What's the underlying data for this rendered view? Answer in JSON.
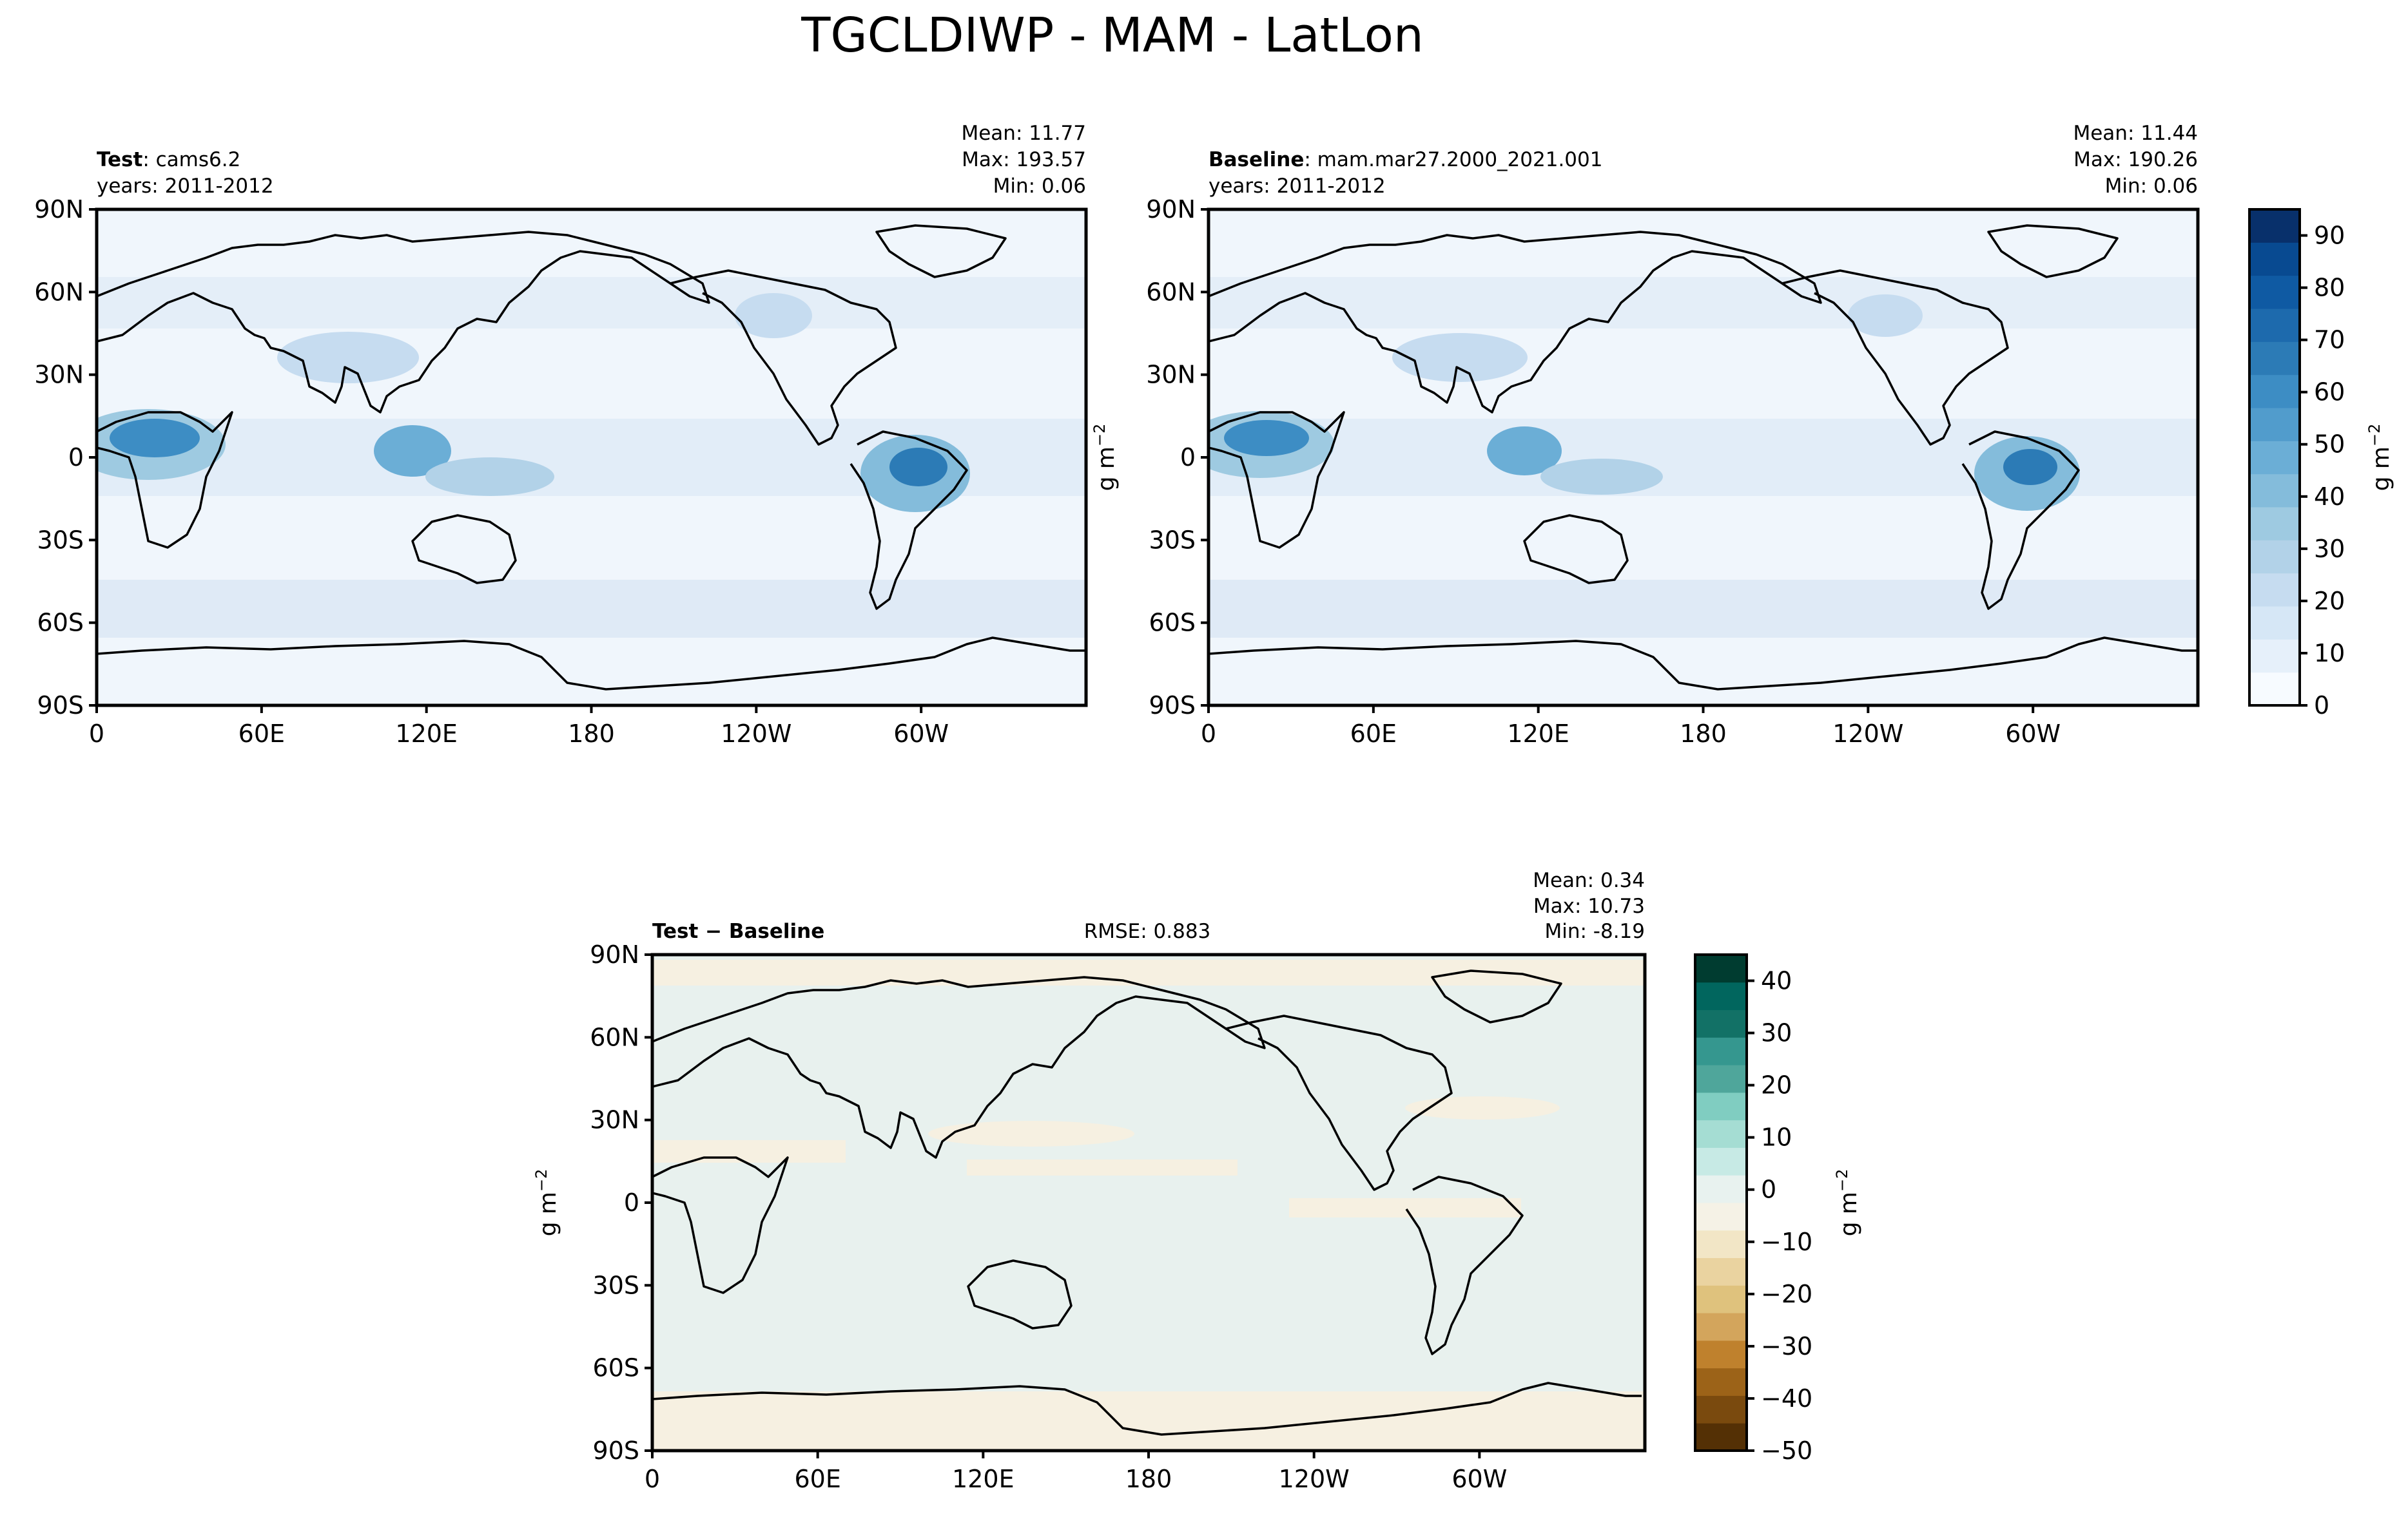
{
  "figure_title": "TGCLDIWP - MAM - LatLon",
  "units_label": "g m",
  "units_exp": "−2",
  "colors": {
    "test_scale": [
      "#f7fbff",
      "#e6f0fa",
      "#d6e7f6",
      "#c6dcf0",
      "#b2d2e8",
      "#9ecae1",
      "#84bcdb",
      "#6baed6",
      "#519ccc",
      "#3d8dc4",
      "#2c7bb6",
      "#1d6aad",
      "#0f5aa3",
      "#084a91",
      "#08306b"
    ],
    "diff_scale": [
      "#543005",
      "#7a4a0e",
      "#9c6318",
      "#bf812d",
      "#d3a55c",
      "#dfc27d",
      "#ead3a0",
      "#f2e6c6",
      "#f5f2e6",
      "#e8f2ef",
      "#c7eae5",
      "#a5ddd3",
      "#80cdc1",
      "#4fa69b",
      "#35978f",
      "#127166",
      "#01665e",
      "#003c30"
    ],
    "land_outline": "#000000",
    "ocean_base_test": "#f0f6fc",
    "ocean_base_diff": "#e8f1ee"
  },
  "chart_data": [
    {
      "type": "heatmap",
      "panel": "test",
      "label_bold": "Test",
      "label_rest": ": cams6.2",
      "years": "years: 2011-2012",
      "stats": [
        "Mean: 11.77",
        "Max: 193.57",
        "Min:  0.06"
      ],
      "xticks": [
        "0",
        "60E",
        "120E",
        "180",
        "120W",
        "60W"
      ],
      "yticks": [
        "90N",
        "60N",
        "30N",
        "0",
        "30S",
        "60S",
        "90S"
      ],
      "lon_range": [
        0,
        360
      ],
      "lat_range": [
        -90,
        90
      ],
      "value_range": [
        0,
        95
      ],
      "hotspots": [
        {
          "name": "Central Africa",
          "lon": 20,
          "lat": 2,
          "value": 70
        },
        {
          "name": "Amazon",
          "lon": 295,
          "lat": -5,
          "value": 80
        },
        {
          "name": "Maritime Continent",
          "lon": 115,
          "lat": 0,
          "value": 55
        },
        {
          "name": "Tibetan Plateau",
          "lon": 90,
          "lat": 32,
          "value": 30
        },
        {
          "name": "Western Pacific",
          "lon": 150,
          "lat": -5,
          "value": 35
        }
      ]
    },
    {
      "type": "heatmap",
      "panel": "baseline",
      "label_bold": "Baseline",
      "label_rest": ": mam.mar27.2000_2021.001",
      "years": "years: 2011-2012",
      "stats": [
        "Mean: 11.44",
        "Max: 190.26",
        "Min:  0.06"
      ],
      "xticks": [
        "0",
        "60E",
        "120E",
        "180",
        "120W",
        "60W"
      ],
      "yticks": [
        "90N",
        "60N",
        "30N",
        "0",
        "30S",
        "60S",
        "90S"
      ],
      "lon_range": [
        0,
        360
      ],
      "lat_range": [
        -90,
        90
      ],
      "value_range": [
        0,
        95
      ],
      "colorbar_ticks": [
        0,
        10,
        20,
        30,
        40,
        50,
        60,
        70,
        80,
        90
      ],
      "hotspots": [
        {
          "name": "Central Africa",
          "lon": 20,
          "lat": 2,
          "value": 68
        },
        {
          "name": "Amazon",
          "lon": 295,
          "lat": -5,
          "value": 78
        },
        {
          "name": "Maritime Continent",
          "lon": 115,
          "lat": 0,
          "value": 52
        },
        {
          "name": "Tibetan Plateau",
          "lon": 90,
          "lat": 32,
          "value": 28
        },
        {
          "name": "Western Pacific",
          "lon": 150,
          "lat": -5,
          "value": 33
        }
      ]
    },
    {
      "type": "heatmap",
      "panel": "difference",
      "label_bold": "Test − Baseline",
      "rmse": "RMSE: 0.883",
      "stats": [
        "Mean:  0.34",
        "Max: 10.73",
        "Min: -8.19"
      ],
      "xticks": [
        "0",
        "60E",
        "120E",
        "180",
        "120W",
        "60W"
      ],
      "yticks": [
        "90N",
        "60N",
        "30N",
        "0",
        "30S",
        "60S",
        "90S"
      ],
      "lon_range": [
        0,
        360
      ],
      "lat_range": [
        -90,
        90
      ],
      "value_range": [
        -50,
        45
      ],
      "colorbar_ticks": [
        40,
        30,
        20,
        10,
        0,
        -10,
        -20,
        -30,
        -40,
        -50
      ]
    }
  ]
}
